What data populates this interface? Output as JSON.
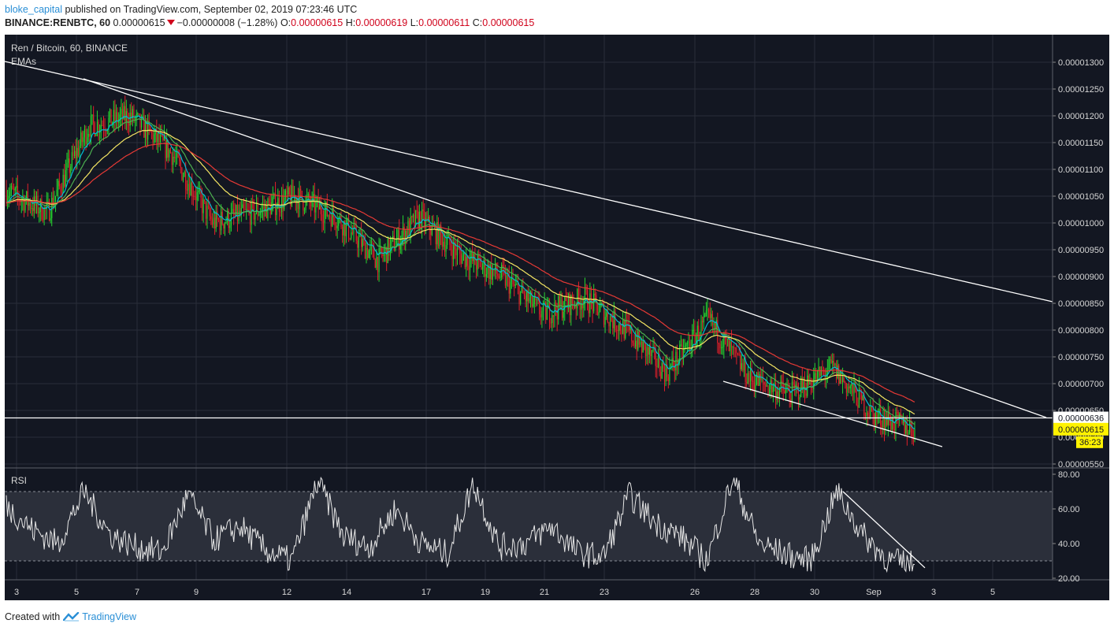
{
  "header": {
    "username": "bloke_capital",
    "published_text": " published on TradingView.com, September 02, 2019 07:23:46 UTC",
    "symbol": "BINANCE:RENBTC, 60",
    "last_price": "0.00000615",
    "change": "−0.00000008 (−1.28%)",
    "o_label": "O:",
    "o_value": "0.00000615",
    "h_label": "H:",
    "h_value": "0.00000619",
    "l_label": "L:",
    "l_value": "0.00000611",
    "c_label": "C:",
    "c_value": "0.00000615"
  },
  "chart_data": {
    "type": "candlestick",
    "title": "Ren / Bitcoin, 60, BINANCE",
    "indicator_label": "EMAs",
    "x_ticks": [
      "3",
      "5",
      "7",
      "9",
      "12",
      "14",
      "17",
      "19",
      "21",
      "23",
      "26",
      "28",
      "30",
      "Sep",
      "3",
      "5"
    ],
    "price_axis": {
      "ticks": [
        "0.00001300",
        "0.00001250",
        "0.00001200",
        "0.00001150",
        "0.00001100",
        "0.00001050",
        "0.00001000",
        "0.00000950",
        "0.00000900",
        "0.00000850",
        "0.00000800",
        "0.00000750",
        "0.00000700",
        "0.00000650",
        "0.00000600",
        "0.00000550"
      ],
      "range": [
        5.5e-06,
        1.3e-05
      ],
      "horizontal_line_value": "0.00000636",
      "current_price_label": "0.00000615",
      "countdown": "36:23"
    },
    "approx_price_path": [
      {
        "date": "Aug 3",
        "close": 1.06e-05
      },
      {
        "date": "Aug 4",
        "close": 1.02e-05
      },
      {
        "date": "Aug 5",
        "close": 1.18e-05
      },
      {
        "date": "Aug 6",
        "close": 1.2e-05
      },
      {
        "date": "Aug 7",
        "close": 1.13e-05
      },
      {
        "date": "Aug 8",
        "close": 1e-05
      },
      {
        "date": "Aug 9",
        "close": 1.02e-05
      },
      {
        "date": "Aug 10",
        "close": 1.05e-05
      },
      {
        "date": "Aug 12",
        "close": 1.01e-05
      },
      {
        "date": "Aug 14",
        "close": 9.3e-06
      },
      {
        "date": "Aug 15",
        "close": 1.01e-05
      },
      {
        "date": "Aug 17",
        "close": 9.4e-06
      },
      {
        "date": "Aug 19",
        "close": 9e-06
      },
      {
        "date": "Aug 21",
        "close": 8.3e-06
      },
      {
        "date": "Aug 23",
        "close": 8.6e-06
      },
      {
        "date": "Aug 24",
        "close": 8e-06
      },
      {
        "date": "Aug 26",
        "close": 7.2e-06
      },
      {
        "date": "Aug 28",
        "close": 8.2e-06
      },
      {
        "date": "Aug 29",
        "close": 7.1e-06
      },
      {
        "date": "Aug 30",
        "close": 6.8e-06
      },
      {
        "date": "Aug 31",
        "close": 7.3e-06
      },
      {
        "date": "Sep 1",
        "close": 6.4e-06
      },
      {
        "date": "Sep 2",
        "close": 6.15e-06
      }
    ],
    "ema_colors": {
      "fast": "#00bcd4",
      "mid": "#4caf50",
      "slow": "#f5e663",
      "slowest": "#e53935"
    },
    "candle_colors": {
      "up": "#26d42f",
      "down": "#e0202a"
    },
    "rsi": {
      "label": "RSI",
      "ticks": [
        "80.00",
        "60.00",
        "40.00",
        "20.00"
      ],
      "range": [
        20,
        80
      ],
      "band": [
        30,
        70
      ],
      "approx_path": [
        62,
        48,
        40,
        70,
        45,
        38,
        35,
        68,
        42,
        50,
        36,
        30,
        76,
        44,
        38,
        60,
        40,
        34,
        75,
        38,
        40,
        50,
        35,
        32,
        68,
        52,
        44,
        30,
        78,
        40,
        34,
        30,
        70,
        45,
        30,
        28
      ]
    },
    "trendlines": "white descending resistance lines, lower channel line, RSI descending line"
  },
  "footer": {
    "created_with": "Created with",
    "brand": "TradingView"
  }
}
